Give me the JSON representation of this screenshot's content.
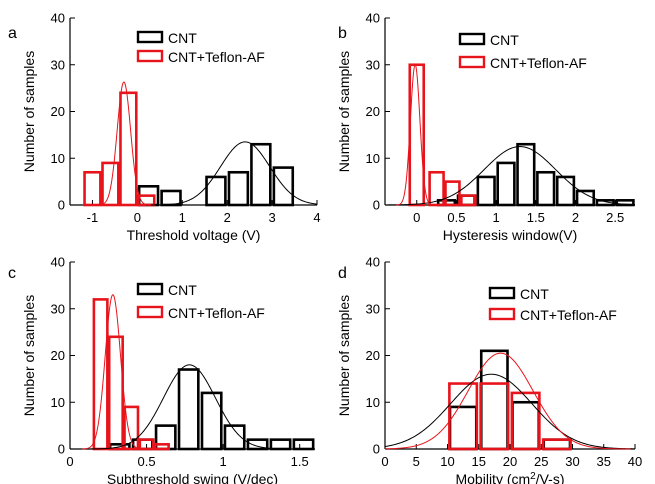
{
  "colors": {
    "cnt": "#000000",
    "teflon": "#e8141c"
  },
  "legend": {
    "cnt": "CNT",
    "teflon": "CNT+Teflon-AF"
  },
  "chart_data": [
    {
      "panel": "a",
      "type": "bar",
      "xlabel": "Threshold voltage (V)",
      "ylabel": "Number of samples",
      "xlim": [
        -1.5,
        4
      ],
      "ylim": [
        0,
        40
      ],
      "xticks": [
        -1,
        0,
        1,
        2,
        3,
        4
      ],
      "yticks": [
        0,
        10,
        20,
        30,
        40
      ],
      "legend_position": "top-right",
      "series": [
        {
          "name": "CNT",
          "color": "black",
          "bin_width": 0.5,
          "x": [
            0.25,
            0.75,
            1.75,
            2.25,
            2.75,
            3.25
          ],
          "values": [
            4,
            3,
            6,
            7,
            13,
            8
          ],
          "x_extra": [
            3.25
          ],
          "fit": {
            "mu": 2.4,
            "sigma": 0.55,
            "peak": 13.5
          }
        },
        {
          "name": "CNT+Teflon-AF",
          "color": "red",
          "bin_width": 0.4,
          "x": [
            -1.0,
            -0.6,
            -0.2,
            0.2
          ],
          "values": [
            7,
            9,
            24,
            2
          ],
          "fit": {
            "mu": -0.3,
            "sigma": 0.15,
            "peak": 26.3
          }
        }
      ]
    },
    {
      "panel": "b",
      "type": "bar",
      "xlabel": "Hysteresis window(V)",
      "ylabel": "Number of samples",
      "xlim": [
        -0.4,
        2.75
      ],
      "ylim": [
        0,
        40
      ],
      "xticks": [
        0.0,
        0.5,
        1.0,
        1.5,
        2.0,
        2.5
      ],
      "yticks": [
        0,
        10,
        20,
        30,
        40
      ],
      "legend_position": "top-right",
      "series": [
        {
          "name": "CNT",
          "color": "black",
          "bin_width": 0.25,
          "x": [
            0.375,
            0.625,
            0.875,
            1.125,
            1.375,
            1.625,
            1.875,
            2.125,
            2.375,
            2.625
          ],
          "values": [
            1,
            2,
            6,
            9,
            13,
            7,
            6,
            3,
            1,
            1
          ],
          "fit": {
            "mu": 1.3,
            "sigma": 0.45,
            "peak": 12.5
          }
        },
        {
          "name": "CNT+Teflon-AF",
          "color": "red",
          "bin_width": 0.2,
          "x": [
            0.0,
            0.25,
            0.45,
            0.65
          ],
          "values": [
            30,
            7,
            5,
            2
          ],
          "fit": {
            "mu": -0.02,
            "sigma": 0.06,
            "peak": 30
          }
        }
      ]
    },
    {
      "panel": "c",
      "type": "bar",
      "xlabel": "Subthreshold swing (V/dec)",
      "ylabel": "Number of samples",
      "xlim": [
        0.0,
        1.6
      ],
      "ylim": [
        0,
        40
      ],
      "xticks": [
        0.0,
        0.5,
        1.0,
        1.5
      ],
      "yticks": [
        0,
        10,
        20,
        30,
        40
      ],
      "legend_position": "top-right",
      "series": [
        {
          "name": "CNT",
          "color": "black",
          "bin_width": 0.15,
          "x": [
            0.325,
            0.475,
            0.625,
            0.775,
            0.925,
            1.075,
            1.225,
            1.375,
            1.525
          ],
          "values": [
            1,
            2,
            5,
            17,
            12,
            5,
            2,
            2,
            2
          ],
          "fit": {
            "mu": 0.78,
            "sigma": 0.17,
            "peak": 18
          }
        },
        {
          "name": "CNT+Teflon-AF",
          "color": "red",
          "bin_width": 0.1,
          "x": [
            0.2,
            0.3,
            0.4,
            0.5,
            0.6
          ],
          "values": [
            32,
            24,
            9,
            2,
            1
          ],
          "fit": {
            "mu": 0.28,
            "sigma": 0.05,
            "peak": 33
          }
        }
      ]
    },
    {
      "panel": "d",
      "type": "bar",
      "xlabel": "Mobility (cm²/V-s)",
      "ylabel": "Number of samples",
      "xlim": [
        0,
        40
      ],
      "ylim": [
        0,
        40
      ],
      "xticks": [
        0,
        5,
        10,
        15,
        20,
        25,
        30,
        35,
        40
      ],
      "yticks": [
        0,
        10,
        20,
        30,
        40
      ],
      "legend_position": "top-right",
      "series": [
        {
          "name": "CNT",
          "color": "black",
          "bin_width": 5,
          "x": [
            12.5,
            17.5,
            22.5,
            27.5
          ],
          "values": [
            9,
            21,
            10,
            2
          ],
          "fit": {
            "mu": 17.0,
            "sigma": 6.5,
            "peak": 16
          }
        },
        {
          "name": "CNT+Teflon-AF",
          "color": "red",
          "bin_width": 5,
          "x": [
            12.5,
            17.5,
            22.5,
            27.5
          ],
          "values": [
            14,
            14,
            12,
            2
          ],
          "fit": {
            "mu": 18.5,
            "sigma": 5.2,
            "peak": 20.5
          }
        }
      ]
    }
  ]
}
